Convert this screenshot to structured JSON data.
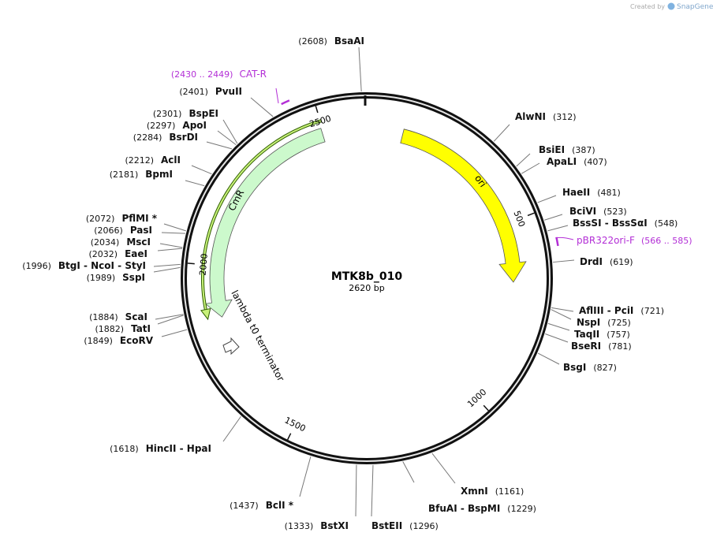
{
  "credit": {
    "prefix": "Created by",
    "brand": "SnapGene"
  },
  "map": {
    "name": "MTK8b_010",
    "size_label": "2620 bp",
    "length": 2620,
    "ticks": [
      500,
      1000,
      1500,
      2000,
      2500
    ]
  },
  "features": [
    {
      "name": "ori"
    },
    {
      "name": "CmR"
    },
    {
      "name": "lambda t0 terminator"
    }
  ],
  "primers": [
    {
      "name": "CAT-R",
      "range": "(2430 .. 2449)",
      "start": 2430,
      "end": 2449
    },
    {
      "name": "pBR322ori-F",
      "range": "(566 .. 585)",
      "start": 566,
      "end": 585
    }
  ],
  "sites": [
    {
      "name": "BsaAI",
      "position": {
        "value": 2608,
        "label": "(2608)"
      }
    },
    {
      "name": "PvuII",
      "position": {
        "value": 2401,
        "label": "(2401)"
      }
    },
    {
      "name": "BspEI",
      "position": {
        "value": 2301,
        "label": "(2301)"
      }
    },
    {
      "name": "ApoI",
      "position": {
        "value": 2297,
        "label": "(2297)"
      }
    },
    {
      "name": "BsrDI",
      "position": {
        "value": 2284,
        "label": "(2284)"
      }
    },
    {
      "name": "AclI",
      "position": {
        "value": 2212,
        "label": "(2212)"
      }
    },
    {
      "name": "BpmI",
      "position": {
        "value": 2181,
        "label": "(2181)"
      }
    },
    {
      "name": "PflMI *",
      "position": {
        "value": 2072,
        "label": "(2072)"
      }
    },
    {
      "name": "PasI",
      "position": {
        "value": 2066,
        "label": "(2066)"
      }
    },
    {
      "name": "MscI",
      "position": {
        "value": 2034,
        "label": "(2034)"
      }
    },
    {
      "name": "EaeI",
      "position": {
        "value": 2032,
        "label": "(2032)"
      }
    },
    {
      "name": "BtgI  -  NcoI  -  StyI",
      "position": {
        "value": 1996,
        "label": "(1996)"
      }
    },
    {
      "name": "SspI",
      "position": {
        "value": 1989,
        "label": "(1989)"
      }
    },
    {
      "name": "ScaI",
      "position": {
        "value": 1884,
        "label": "(1884)"
      }
    },
    {
      "name": "TatI",
      "position": {
        "value": 1882,
        "label": "(1882)"
      }
    },
    {
      "name": "EcoRV",
      "position": {
        "value": 1849,
        "label": "(1849)"
      }
    },
    {
      "name": "HincII  -  HpaI",
      "position": {
        "value": 1618,
        "label": "(1618)"
      }
    },
    {
      "name": "BclI *",
      "position": {
        "value": 1437,
        "label": "(1437)"
      }
    },
    {
      "name": "BstXI",
      "position": {
        "value": 1333,
        "label": "(1333)"
      }
    },
    {
      "name": "BstEII",
      "position": {
        "value": 1296,
        "label": "(1296)"
      }
    },
    {
      "name": "BfuAI  -  BspMI",
      "position": {
        "value": 1229,
        "label": "(1229)"
      }
    },
    {
      "name": "XmnI",
      "position": {
        "value": 1161,
        "label": "(1161)"
      }
    },
    {
      "name": "BsgI",
      "position": {
        "value": 827,
        "label": "(827)"
      }
    },
    {
      "name": "BseRI",
      "position": {
        "value": 781,
        "label": "(781)"
      }
    },
    {
      "name": "TaqII",
      "position": {
        "value": 757,
        "label": "(757)"
      }
    },
    {
      "name": "NspI",
      "position": {
        "value": 725,
        "label": "(725)"
      }
    },
    {
      "name": "AflIII  -  PciI",
      "position": {
        "value": 721,
        "label": "(721)"
      }
    },
    {
      "name": "DrdI",
      "position": {
        "value": 619,
        "label": "(619)"
      }
    },
    {
      "name": "BssSI  -  BssSαI",
      "position": {
        "value": 548,
        "label": "(548)"
      }
    },
    {
      "name": "BciVI",
      "position": {
        "value": 523,
        "label": "(523)"
      }
    },
    {
      "name": "HaeII",
      "position": {
        "value": 481,
        "label": "(481)"
      }
    },
    {
      "name": "ApaLI",
      "position": {
        "value": 407,
        "label": "(407)"
      }
    },
    {
      "name": "BsiEI",
      "position": {
        "value": 387,
        "label": "(387)"
      }
    },
    {
      "name": "AlwNI",
      "position": {
        "value": 312,
        "label": "(312)"
      }
    }
  ]
}
